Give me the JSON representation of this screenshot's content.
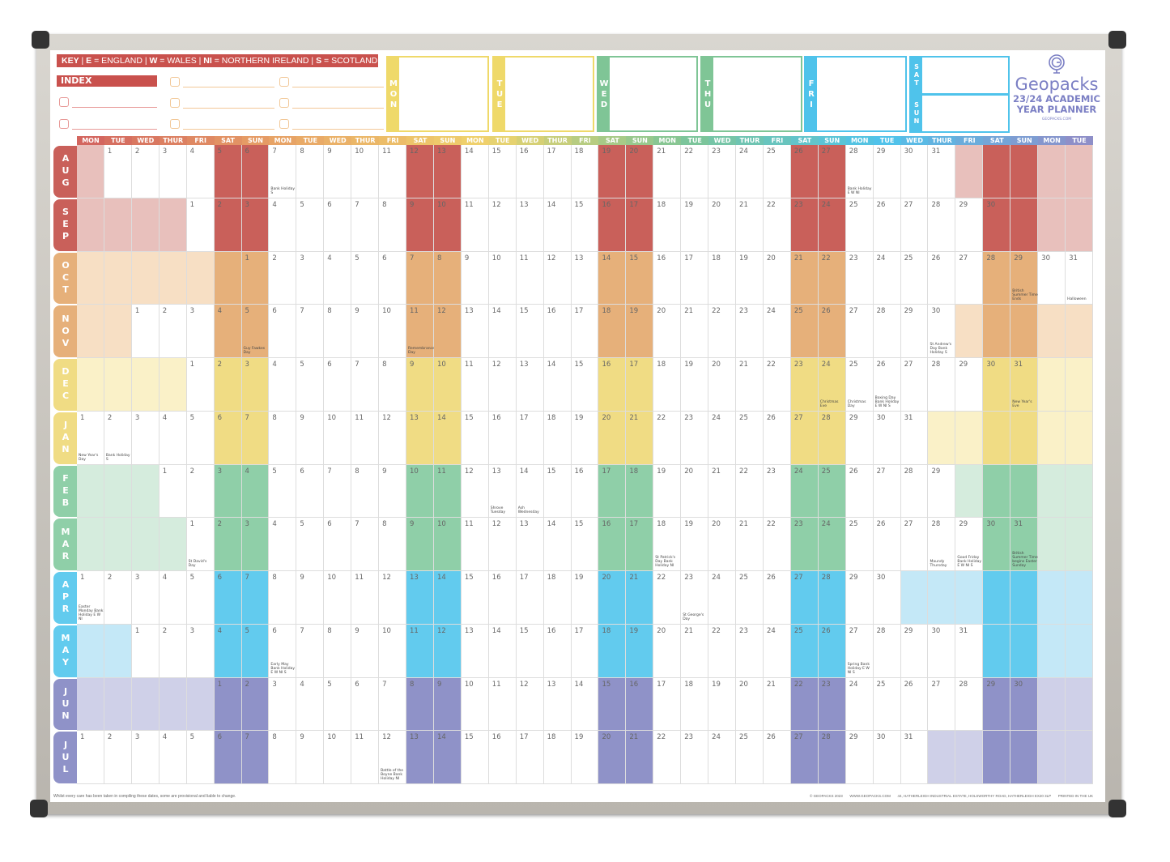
{
  "key": {
    "label": "KEY",
    "items": [
      {
        "code": "E",
        "name": "ENGLAND"
      },
      {
        "code": "W",
        "name": "WALES"
      },
      {
        "code": "NI",
        "name": "NORTHERN IRELAND"
      },
      {
        "code": "S",
        "name": "SCOTLAND"
      }
    ]
  },
  "index": {
    "label": "INDEX"
  },
  "week_boxes": [
    {
      "label": "MON",
      "color": "#efd96a"
    },
    {
      "label": "TUE",
      "color": "#efd96a"
    },
    {
      "label": "WED",
      "color": "#7fc596"
    },
    {
      "label": "THU",
      "color": "#7fc596"
    },
    {
      "label": "FRI",
      "color": "#4fc3eb"
    },
    {
      "label": "SAT",
      "color": "#4fc3eb"
    },
    {
      "label": "SUN",
      "color": "#4fc3eb"
    }
  ],
  "logo": {
    "brand": "Geopacks",
    "title1": "23/24 ACADEMIC",
    "title2": "YEAR PLANNER",
    "site": "GEOPACKS.COM"
  },
  "weekdays": [
    "MON",
    "TUE",
    "WED",
    "THUR",
    "FRI",
    "SAT",
    "SUN"
  ],
  "months": [
    {
      "name": "AUG",
      "first_weekday": "TUE",
      "days": 31,
      "color": "#c9605a",
      "light": "#e8c0bc",
      "holidays": {
        "7": "Bank Holiday S",
        "28": "Bank Holiday E W NI"
      }
    },
    {
      "name": "SEP",
      "first_weekday": "FRI",
      "days": 30,
      "color": "#c9605a",
      "light": "#e8c0bc",
      "holidays": {}
    },
    {
      "name": "OCT",
      "first_weekday": "SUN",
      "days": 31,
      "color": "#e6b07a",
      "light": "#f7dfc4",
      "holidays": {
        "29": "British Summer Time Ends",
        "31": "Halloween"
      }
    },
    {
      "name": "NOV",
      "first_weekday": "WED",
      "days": 30,
      "color": "#e6b07a",
      "light": "#f7dfc4",
      "holidays": {
        "5": "Guy Fawkes Day",
        "11": "Remembrance Day",
        "30": "St Andrew's Day Bank Holiday S"
      }
    },
    {
      "name": "DEC",
      "first_weekday": "FRI",
      "days": 31,
      "color": "#f0dc84",
      "light": "#faf1c8",
      "holidays": {
        "24": "Christmas Eve",
        "25": "Christmas Day",
        "26": "Boxing Day Bank Holiday E W NI S",
        "31": "New Year's Eve"
      }
    },
    {
      "name": "JAN",
      "first_weekday": "MON",
      "days": 31,
      "color": "#f0dc84",
      "light": "#faf1c8",
      "holidays": {
        "1": "New Year's Day",
        "2": "Bank Holiday S"
      }
    },
    {
      "name": "FEB",
      "first_weekday": "THUR",
      "days": 29,
      "color": "#8fcfa8",
      "light": "#d5ecdd",
      "holidays": {
        "13": "Shrove Tuesday",
        "14": "Ash Wednesday"
      }
    },
    {
      "name": "MAR",
      "first_weekday": "FRI",
      "days": 31,
      "color": "#8fcfa8",
      "light": "#d5ecdd",
      "holidays": {
        "1": "St David's Day",
        "18": "St Patrick's Day Bank Holiday NI",
        "28": "Maundy Thursday",
        "29": "Good Friday Bank Holiday E W NI S",
        "31": "British Summer Time begins Easter Sunday"
      }
    },
    {
      "name": "APR",
      "first_weekday": "MON",
      "days": 30,
      "color": "#62cbee",
      "light": "#c4e8f7",
      "holidays": {
        "1": "Easter Monday Bank Holiday E W NI",
        "23": "St George's Day"
      }
    },
    {
      "name": "MAY",
      "first_weekday": "WED",
      "days": 31,
      "color": "#62cbee",
      "light": "#c4e8f7",
      "holidays": {
        "6": "Early May Bank Holiday E W NI S",
        "27": "Spring Bank Holiday E W NI S"
      }
    },
    {
      "name": "JUN",
      "first_weekday": "SAT",
      "days": 30,
      "color": "#8f92c8",
      "light": "#cfd0e8",
      "holidays": {}
    },
    {
      "name": "JUL",
      "first_weekday": "MON",
      "days": 31,
      "color": "#8f92c8",
      "light": "#cfd0e8",
      "holidays": {
        "12": "Battle of the Boyne Bank Holiday NI"
      }
    }
  ],
  "header_colors": [
    "#d3665f",
    "#e8a566",
    "#efd36c",
    "#7fc596",
    "#4fc3eb",
    "#8e8fc8"
  ],
  "footer": {
    "disclaimer": "Whilst every care has been taken in compiling these dates, some are provisional and liable to change.",
    "copyright": "© GEOPACKS 2023",
    "website": "WWW.GEOPACKS.COM",
    "address": "44, HATHERLEIGH INDUSTRIAL ESTATE, HOLSWORTHY ROAD, HATHERLEIGH EX20 3LP",
    "printed": "PRINTED IN THE UK"
  }
}
